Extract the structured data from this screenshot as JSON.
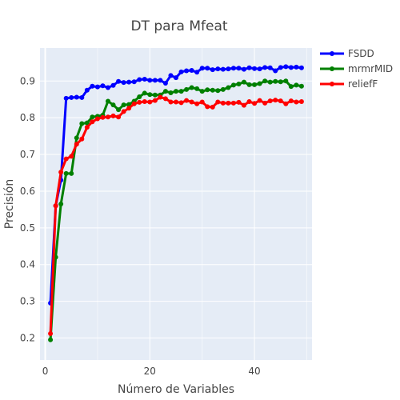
{
  "chart_data": {
    "type": "line",
    "title": "DT para Mfeat",
    "xlabel": "Número de Variables",
    "ylabel": "Precisión",
    "xlim": [
      -1,
      51
    ],
    "ylim": [
      0.14,
      0.99
    ],
    "xticks": [
      0,
      20,
      40
    ],
    "yticks": [
      0.2,
      0.3,
      0.4,
      0.5,
      0.6,
      0.7,
      0.8,
      0.9
    ],
    "grid": true,
    "legend_position": "top-right",
    "background_color": "#e5ecf6",
    "x": [
      1,
      2,
      3,
      4,
      5,
      6,
      7,
      8,
      9,
      10,
      11,
      12,
      13,
      14,
      15,
      16,
      17,
      18,
      19,
      20,
      21,
      22,
      23,
      24,
      25,
      26,
      27,
      28,
      29,
      30,
      31,
      32,
      33,
      34,
      35,
      36,
      37,
      38,
      39,
      40,
      41,
      42,
      43,
      44,
      45,
      46,
      47,
      48,
      49
    ],
    "series": [
      {
        "name": "FSDD",
        "color": "#0000ff",
        "values": [
          0.295,
          0.56,
          0.63,
          0.853,
          0.855,
          0.856,
          0.855,
          0.875,
          0.886,
          0.884,
          0.887,
          0.882,
          0.888,
          0.899,
          0.896,
          0.897,
          0.898,
          0.904,
          0.905,
          0.902,
          0.902,
          0.902,
          0.894,
          0.915,
          0.909,
          0.925,
          0.928,
          0.929,
          0.924,
          0.935,
          0.935,
          0.931,
          0.933,
          0.932,
          0.933,
          0.935,
          0.935,
          0.932,
          0.936,
          0.934,
          0.933,
          0.937,
          0.936,
          0.928,
          0.937,
          0.939,
          0.937,
          0.938,
          0.936
        ]
      },
      {
        "name": "mrmrMID",
        "color": "#008000",
        "values": [
          0.195,
          0.42,
          0.565,
          0.648,
          0.648,
          0.745,
          0.784,
          0.786,
          0.802,
          0.804,
          0.807,
          0.845,
          0.835,
          0.822,
          0.835,
          0.836,
          0.845,
          0.857,
          0.867,
          0.863,
          0.862,
          0.862,
          0.872,
          0.868,
          0.872,
          0.872,
          0.877,
          0.882,
          0.879,
          0.872,
          0.876,
          0.875,
          0.874,
          0.877,
          0.882,
          0.889,
          0.892,
          0.897,
          0.89,
          0.89,
          0.893,
          0.9,
          0.897,
          0.899,
          0.898,
          0.9,
          0.885,
          0.889,
          0.886
        ]
      },
      {
        "name": "reliefF",
        "color": "#ff0000",
        "values": [
          0.212,
          0.56,
          0.652,
          0.688,
          0.695,
          0.728,
          0.742,
          0.774,
          0.789,
          0.797,
          0.801,
          0.802,
          0.805,
          0.802,
          0.817,
          0.826,
          0.838,
          0.842,
          0.844,
          0.843,
          0.847,
          0.856,
          0.852,
          0.843,
          0.843,
          0.841,
          0.847,
          0.843,
          0.838,
          0.843,
          0.83,
          0.829,
          0.843,
          0.84,
          0.84,
          0.84,
          0.842,
          0.834,
          0.844,
          0.839,
          0.847,
          0.84,
          0.846,
          0.848,
          0.846,
          0.838,
          0.846,
          0.843,
          0.844
        ]
      }
    ]
  }
}
